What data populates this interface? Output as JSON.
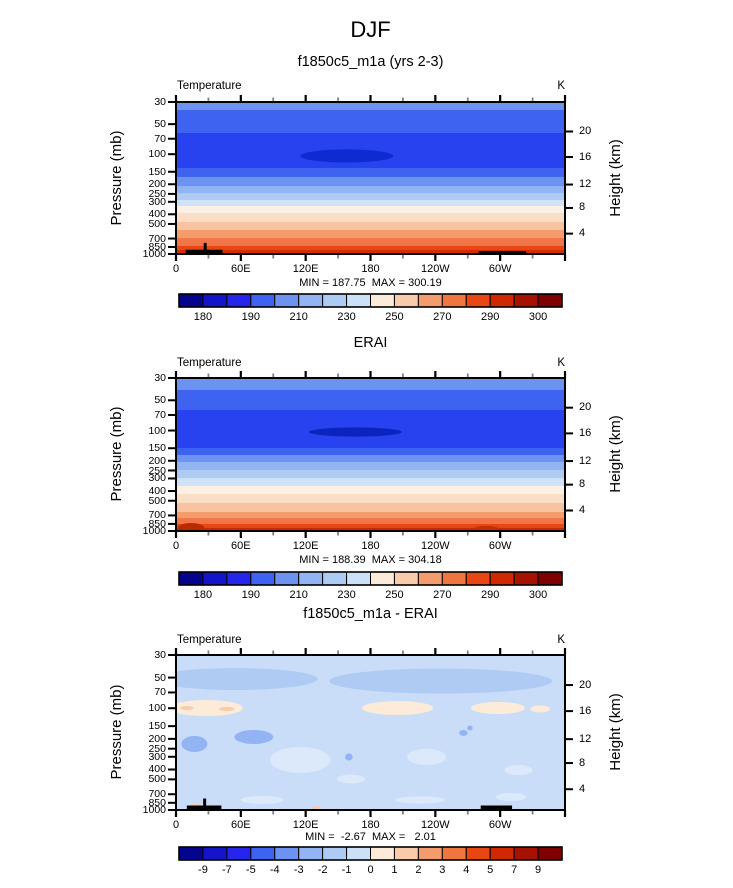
{
  "title": "DJF",
  "axis": {
    "pressure_label": "Pressure (mb)",
    "height_label": "Height (km)",
    "field_label": "Temperature",
    "units_label": "K",
    "pressure_ticks": [
      "30",
      "50",
      "70",
      "100",
      "150",
      "200",
      "250",
      "300",
      "400",
      "500",
      "700",
      "850",
      "1000"
    ],
    "height_ticks": [
      "20",
      "16",
      "12",
      "8",
      "4"
    ],
    "lon_ticks": [
      "0",
      "60E",
      "120E",
      "180",
      "120W",
      "60W"
    ]
  },
  "chart_data": {
    "type": "heatmap",
    "lon_range_deg": [
      0,
      360
    ],
    "pressure_range_mb": [
      30,
      1000
    ],
    "height_range_km": [
      0,
      24
    ],
    "palette16": [
      "#04048C",
      "#1414C8",
      "#2525EC",
      "#3E63F0",
      "#6C93F2",
      "#92B4F2",
      "#AECBF4",
      "#CCE0F8",
      "#FBEBD8",
      "#F8CBAB",
      "#F49C6E",
      "#F0763F",
      "#E84612",
      "#D02800",
      "#A61200",
      "#7E0000"
    ],
    "panels": [
      {
        "title": "f1850c5_m1a (yrs 2-3)",
        "min": 187.75,
        "max": 300.19,
        "min_max_text": "MIN = 187.75  MAX = 300.19",
        "colorbar": {
          "levels": [
            180,
            185,
            190,
            200,
            210,
            220,
            230,
            240,
            250,
            260,
            270,
            280,
            290,
            295,
            300
          ],
          "labels": [
            "180",
            "190",
            "210",
            "230",
            "250",
            "270",
            "290",
            "300"
          ],
          "label_slots": [
            1,
            3,
            5,
            7,
            9,
            11,
            13,
            15
          ]
        },
        "bands": [
          {
            "until": 0.053,
            "color": "#6C93F2"
          },
          {
            "until": 0.204,
            "color": "#3E63F0"
          },
          {
            "until": 0.434,
            "color": "#2742EE"
          },
          {
            "until": 0.493,
            "color": "#3E63F0"
          },
          {
            "until": 0.553,
            "color": "#6C93F2"
          },
          {
            "until": 0.599,
            "color": "#92B4F2"
          },
          {
            "until": 0.645,
            "color": "#AECBF4"
          },
          {
            "until": 0.684,
            "color": "#CFE2F8"
          },
          {
            "until": 0.73,
            "color": "#FBF0E4"
          },
          {
            "until": 0.789,
            "color": "#FADFC6"
          },
          {
            "until": 0.842,
            "color": "#F7C3A0"
          },
          {
            "until": 0.895,
            "color": "#F49C6C"
          },
          {
            "until": 0.947,
            "color": "#F0764A"
          },
          {
            "until": 0.974,
            "color": "#E84612"
          },
          {
            "until": 1.0,
            "color": "#D52B04"
          }
        ],
        "ellipses": [
          {
            "cx_deg": 158,
            "cy_frac": 0.355,
            "rx_deg": 43,
            "ry_frac": 0.043,
            "color": "#0E2BD2"
          }
        ],
        "topo_bars": [
          {
            "x1_deg": 9,
            "x2_deg": 43,
            "y1_frac": 0.972,
            "stub_deg": 27
          },
          {
            "x1_deg": 280,
            "x2_deg": 324,
            "y1_frac": 0.98
          }
        ]
      },
      {
        "title": "ERAI",
        "min": 188.39,
        "max": 304.18,
        "min_max_text": "MIN = 188.39  MAX = 304.18",
        "colorbar": {
          "levels": [
            180,
            185,
            190,
            200,
            210,
            220,
            230,
            240,
            250,
            260,
            270,
            280,
            290,
            295,
            300
          ],
          "labels": [
            "180",
            "190",
            "210",
            "230",
            "250",
            "270",
            "290",
            "300"
          ],
          "label_slots": [
            1,
            3,
            5,
            7,
            9,
            11,
            13,
            15
          ]
        },
        "bands": [
          {
            "until": 0.078,
            "color": "#6C93F2"
          },
          {
            "until": 0.209,
            "color": "#3E63F0"
          },
          {
            "until": 0.458,
            "color": "#2742EE"
          },
          {
            "until": 0.503,
            "color": "#3E63F0"
          },
          {
            "until": 0.549,
            "color": "#6C93F2"
          },
          {
            "until": 0.601,
            "color": "#92B4F2"
          },
          {
            "until": 0.654,
            "color": "#AECBF4"
          },
          {
            "until": 0.706,
            "color": "#CFE2F8"
          },
          {
            "until": 0.758,
            "color": "#FBF0E4"
          },
          {
            "until": 0.817,
            "color": "#FADFC6"
          },
          {
            "until": 0.876,
            "color": "#F7C3A0"
          },
          {
            "until": 0.915,
            "color": "#F49C6C"
          },
          {
            "until": 0.954,
            "color": "#F0764A"
          },
          {
            "until": 0.98,
            "color": "#E84612"
          },
          {
            "until": 1.0,
            "color": "#CE2600"
          }
        ],
        "ellipses": [
          {
            "cx_deg": 166,
            "cy_frac": 0.353,
            "rx_deg": 43,
            "ry_frac": 0.03,
            "color": "#0C24BE"
          }
        ],
        "topo_bumps": [
          {
            "cx_deg": 14,
            "cy_frac": 0.978,
            "rx_deg": 12,
            "ry_frac": 0.03,
            "color": "#BA2A00"
          },
          {
            "cx_deg": 287,
            "cy_frac": 0.985,
            "rx_deg": 11,
            "ry_frac": 0.018,
            "color": "#C33000"
          }
        ]
      },
      {
        "title": "f1850c5_m1a - ERAI",
        "min": -2.67,
        "max": 2.01,
        "min_max_text": "MIN =  -2.67  MAX =   2.01",
        "colorbar": {
          "levels": [
            -9,
            -7,
            -5,
            -4,
            -3,
            -2,
            -1,
            0,
            1,
            2,
            3,
            4,
            5,
            7,
            9
          ],
          "labels": [
            "-9",
            "-7",
            "-5",
            "-4",
            "-3",
            "-2",
            "-1",
            "0",
            "1",
            "2",
            "3",
            "4",
            "5",
            "7",
            "9"
          ],
          "label_slots": [
            1,
            2,
            3,
            4,
            5,
            6,
            7,
            8,
            9,
            10,
            11,
            12,
            13,
            14,
            15
          ]
        },
        "background": "#C9DDF8",
        "blobs": [
          {
            "cx_deg": 55,
            "cy_frac": 0.155,
            "rx_deg": 76,
            "ry_frac": 0.071,
            "color": "#AFCBF4"
          },
          {
            "cx_deg": 245,
            "cy_frac": 0.168,
            "rx_deg": 103,
            "ry_frac": 0.081,
            "color": "#AFCBF4"
          },
          {
            "cx_deg": 17,
            "cy_frac": 0.574,
            "rx_deg": 12,
            "ry_frac": 0.052,
            "color": "#92B4F2"
          },
          {
            "cx_deg": 72,
            "cy_frac": 0.529,
            "rx_deg": 18,
            "ry_frac": 0.045,
            "color": "#92B4F2"
          },
          {
            "cx_deg": 266,
            "cy_frac": 0.503,
            "rx_deg": 4,
            "ry_frac": 0.019,
            "color": "#92B4F2"
          },
          {
            "cx_deg": 272,
            "cy_frac": 0.471,
            "rx_deg": 2.5,
            "ry_frac": 0.016,
            "color": "#92B4F2"
          },
          {
            "cx_deg": 160,
            "cy_frac": 0.658,
            "rx_deg": 3.5,
            "ry_frac": 0.023,
            "color": "#92B4F2"
          },
          {
            "cx_deg": 28,
            "cy_frac": 0.342,
            "rx_deg": 34,
            "ry_frac": 0.052,
            "color": "#FBEBD8"
          },
          {
            "cx_deg": 205,
            "cy_frac": 0.342,
            "rx_deg": 33,
            "ry_frac": 0.045,
            "color": "#FBEBD8"
          },
          {
            "cx_deg": 298,
            "cy_frac": 0.342,
            "rx_deg": 25,
            "ry_frac": 0.039,
            "color": "#FBEBD8"
          },
          {
            "cx_deg": 337,
            "cy_frac": 0.348,
            "rx_deg": 9,
            "ry_frac": 0.023,
            "color": "#FBEBD8"
          },
          {
            "cx_deg": 10,
            "cy_frac": 0.342,
            "rx_deg": 6,
            "ry_frac": 0.013,
            "color": "#F8CBAB"
          },
          {
            "cx_deg": 47,
            "cy_frac": 0.348,
            "rx_deg": 7,
            "ry_frac": 0.013,
            "color": "#F8CBAB"
          },
          {
            "cx_deg": 115,
            "cy_frac": 0.677,
            "rx_deg": 28,
            "ry_frac": 0.084,
            "color": "#DCE9FB"
          },
          {
            "cx_deg": 162,
            "cy_frac": 0.8,
            "rx_deg": 13,
            "ry_frac": 0.029,
            "color": "#DCE9FB"
          },
          {
            "cx_deg": 232,
            "cy_frac": 0.658,
            "rx_deg": 18,
            "ry_frac": 0.052,
            "color": "#DCE9FB"
          },
          {
            "cx_deg": 317,
            "cy_frac": 0.742,
            "rx_deg": 13,
            "ry_frac": 0.032,
            "color": "#DCE9FB"
          },
          {
            "cx_deg": 80,
            "cy_frac": 0.935,
            "rx_deg": 20,
            "ry_frac": 0.026,
            "color": "#DCE9FB"
          },
          {
            "cx_deg": 226,
            "cy_frac": 0.935,
            "rx_deg": 23,
            "ry_frac": 0.023,
            "color": "#DCE9FB"
          },
          {
            "cx_deg": 310,
            "cy_frac": 0.916,
            "rx_deg": 14,
            "ry_frac": 0.026,
            "color": "#DCE9FB"
          },
          {
            "cx_deg": 130,
            "cy_frac": 0.987,
            "rx_deg": 4,
            "ry_frac": 0.012,
            "color": "#F8CBAB"
          },
          {
            "cx_deg": 18,
            "cy_frac": 0.974,
            "rx_deg": 5,
            "ry_frac": 0.014,
            "color": "#F8CBAB"
          }
        ],
        "topo_bars": [
          {
            "x1_deg": 10,
            "x2_deg": 42,
            "y1_frac": 0.971,
            "stub_deg": 26.5
          },
          {
            "x1_deg": 282,
            "x2_deg": 311,
            "y1_frac": 0.971
          }
        ]
      }
    ]
  }
}
